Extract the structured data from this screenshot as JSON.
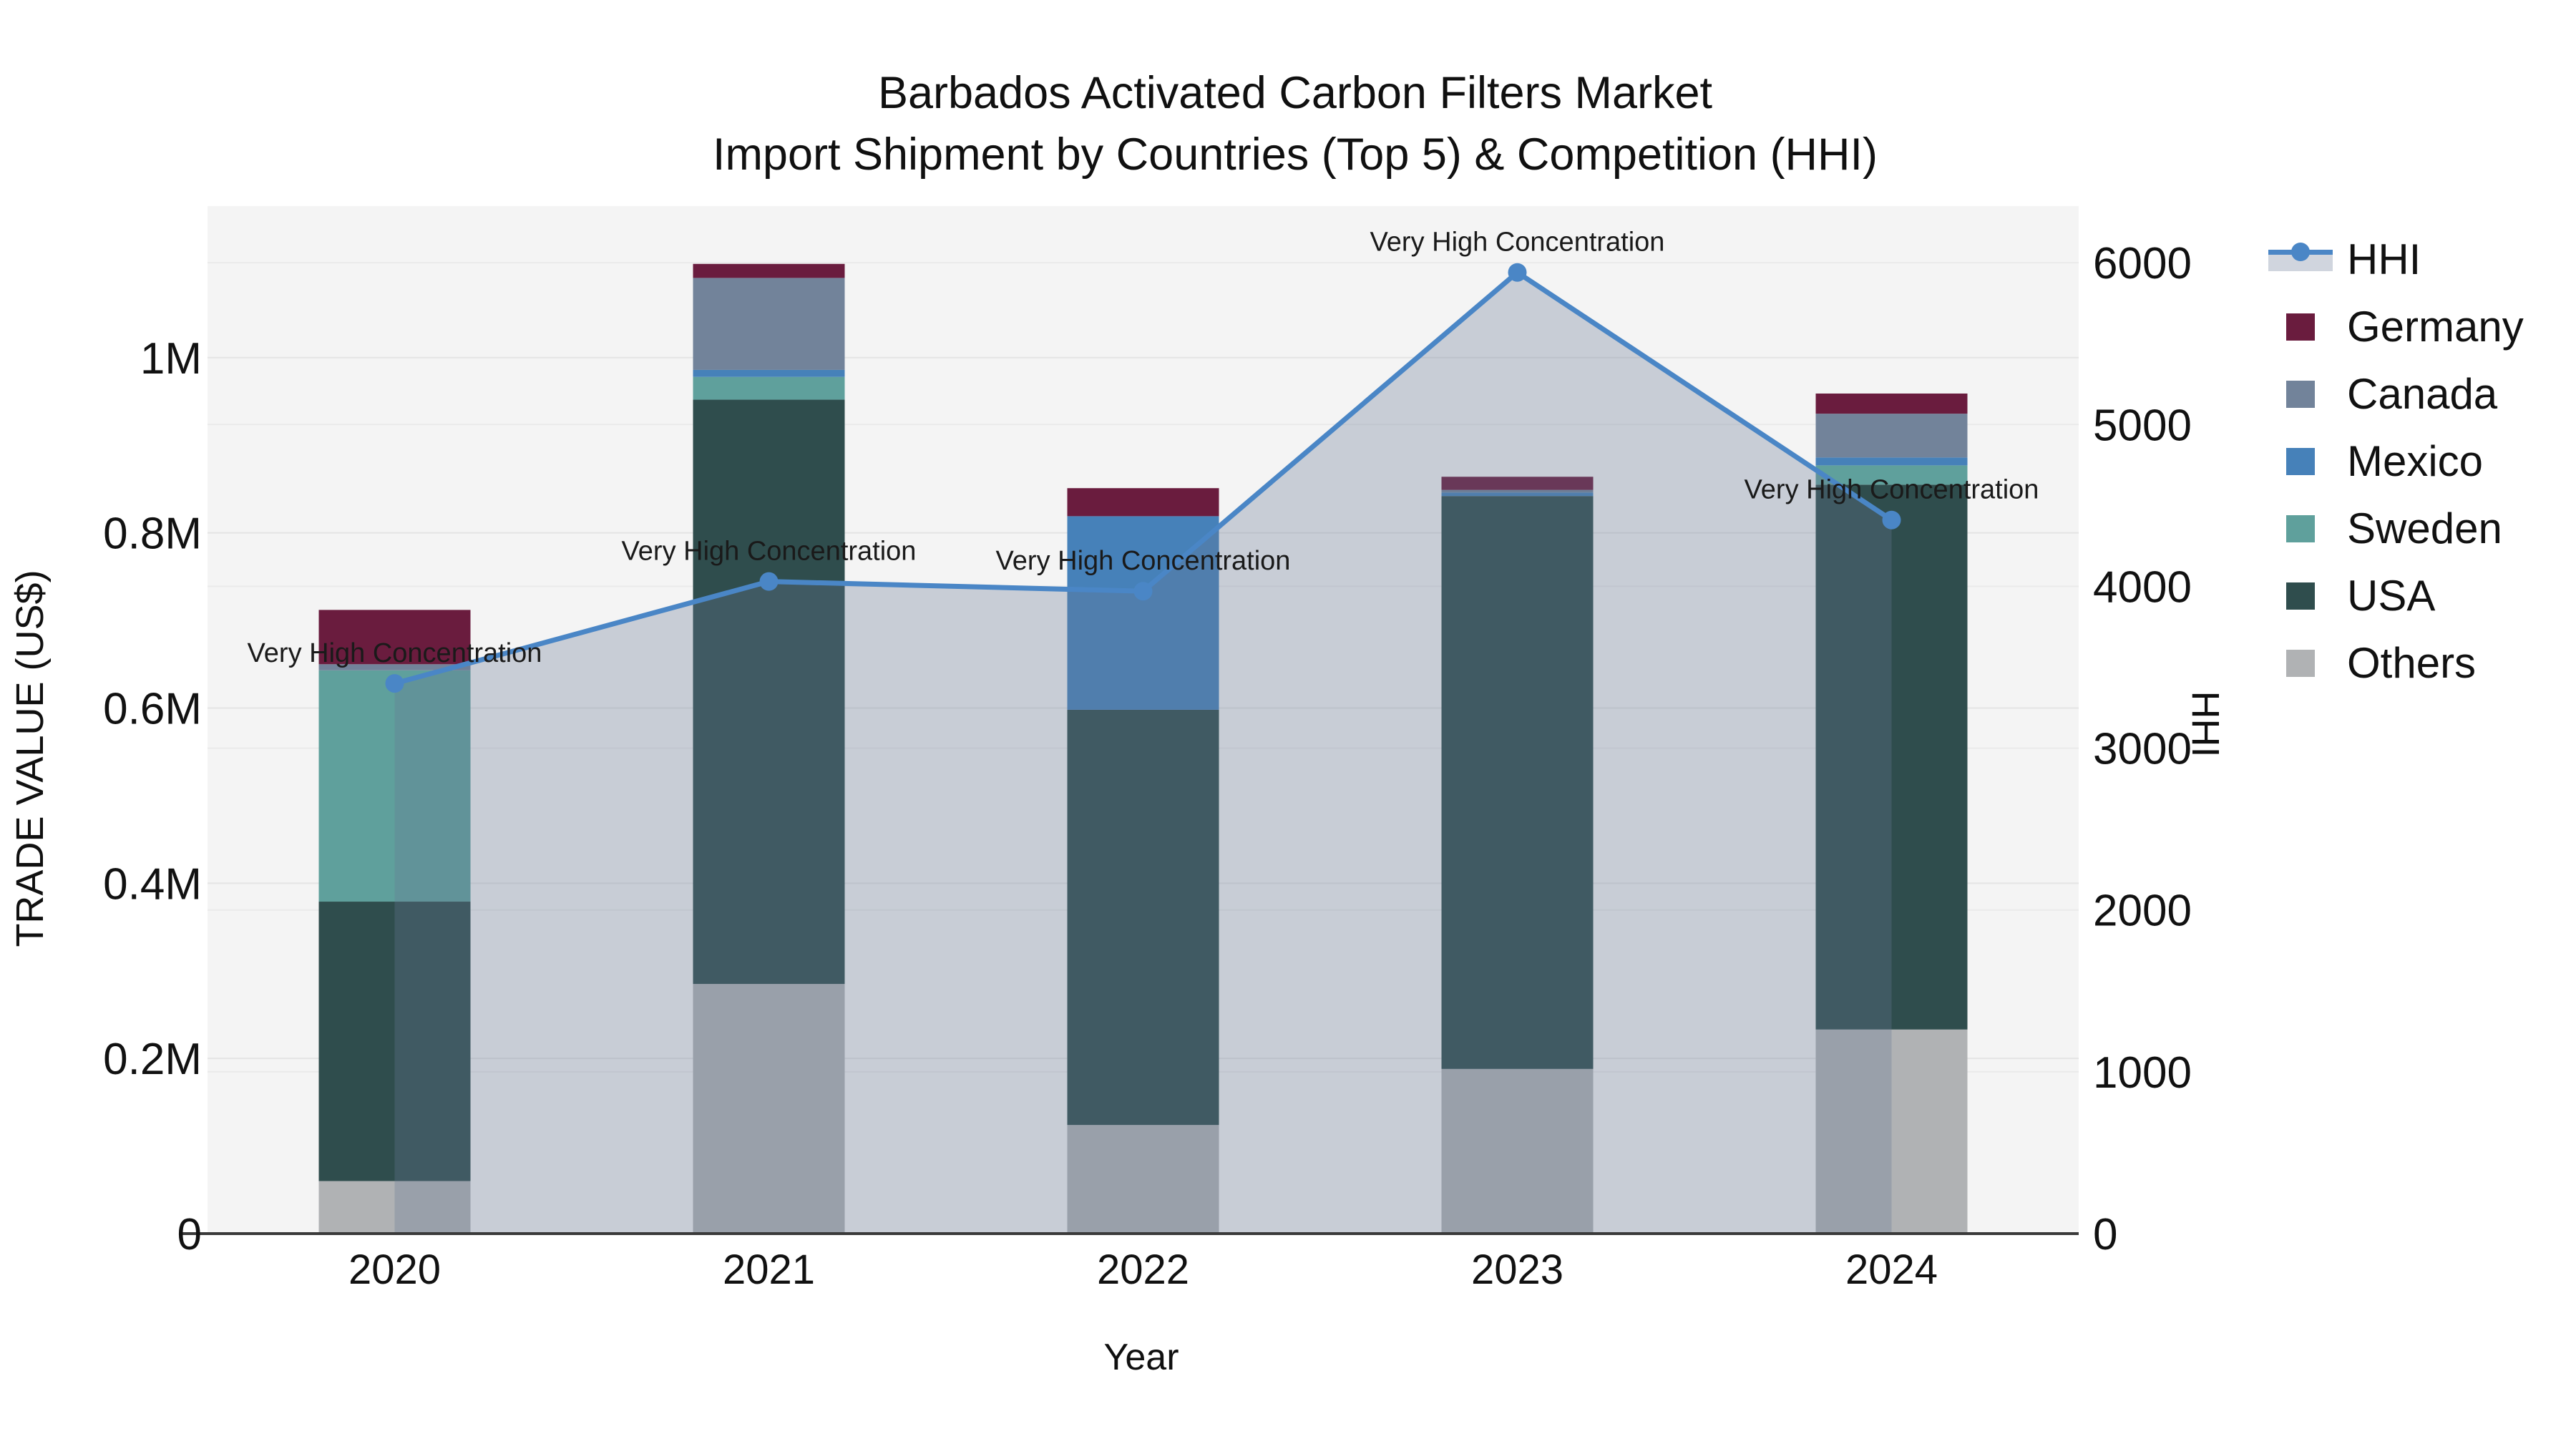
{
  "title": {
    "line1": "Barbados Activated Carbon Filters Market",
    "line2": "Import Shipment by Countries (Top 5) & Competition (HHI)"
  },
  "axes": {
    "x": {
      "title": "Year"
    },
    "y_left": {
      "title": "TRADE VALUE (US$)"
    },
    "y_right": {
      "title": "HHI"
    }
  },
  "colors": {
    "figure_bg": "#ffffff",
    "plot_bg": "#f4f4f4",
    "grid_left": "#e4e4e4",
    "grid_right": "#eaeaea",
    "axis_line": "#3a3a3a",
    "hhi_line": "#4a86c6",
    "hhi_area": "#667693",
    "germany": "#6a1c3e",
    "canada": "#72839a",
    "mexico": "#4681b9",
    "sweden": "#5fa09c",
    "usa": "#2f4d4d",
    "others": "#b0b2b4",
    "text": "#111111",
    "annotation_text": "#1a1a1a"
  },
  "chart_data": {
    "type": "bar",
    "subtype": "stacked-bar-with-line-overlay",
    "categories": [
      "2020",
      "2021",
      "2022",
      "2023",
      "2024"
    ],
    "bar_value_unit": "US$",
    "series": [
      {
        "name": "Others",
        "color": "#b0b2b4",
        "values": [
          60000,
          285000,
          124000,
          188000,
          233000
        ]
      },
      {
        "name": "USA",
        "color": "#2f4d4d",
        "values": [
          319000,
          667000,
          474000,
          654000,
          622000
        ]
      },
      {
        "name": "Sweden",
        "color": "#5fa09c",
        "values": [
          264000,
          26000,
          0,
          0,
          22000
        ]
      },
      {
        "name": "Mexico",
        "color": "#4681b9",
        "values": [
          0,
          8000,
          221000,
          4000,
          9000
        ]
      },
      {
        "name": "Canada",
        "color": "#72839a",
        "values": [
          7000,
          105000,
          0,
          3000,
          50000
        ]
      },
      {
        "name": "Germany",
        "color": "#6a1c3e",
        "values": [
          62000,
          16000,
          32000,
          15000,
          23000
        ]
      }
    ],
    "stack_order_note": "series listed bottom-to-top",
    "totals": [
      712000,
      1107000,
      851000,
      864000,
      959000
    ],
    "line_series": {
      "name": "HHI",
      "color": "#4a86c6",
      "area_color": "#667693",
      "area_opacity": 0.31,
      "values": [
        3400,
        4030,
        3970,
        5940,
        4410
      ]
    },
    "annotations": [
      {
        "category": "2020",
        "text": "Very High Concentration"
      },
      {
        "category": "2021",
        "text": "Very High Concentration"
      },
      {
        "category": "2022",
        "text": "Very High Concentration"
      },
      {
        "category": "2023",
        "text": "Very High Concentration"
      },
      {
        "category": "2024",
        "text": "Very High Concentration"
      }
    ],
    "title": "Barbados Activated Carbon Filters Market Import Shipment by Countries (Top 5) & Competition (HHI)",
    "xlabel": "Year",
    "ylabel_left": "TRADE VALUE (US$)",
    "ylabel_right": "HHI",
    "y_left_ticks": [
      {
        "v": 0,
        "label": "0"
      },
      {
        "v": 200000,
        "label": "0.2M"
      },
      {
        "v": 400000,
        "label": "0.4M"
      },
      {
        "v": 600000,
        "label": "0.6M"
      },
      {
        "v": 800000,
        "label": "0.8M"
      },
      {
        "v": 1000000,
        "label": "1M"
      }
    ],
    "y_right_ticks": [
      {
        "v": 0,
        "label": "0"
      },
      {
        "v": 1000,
        "label": "1000"
      },
      {
        "v": 2000,
        "label": "2000"
      },
      {
        "v": 3000,
        "label": "3000"
      },
      {
        "v": 4000,
        "label": "4000"
      },
      {
        "v": 5000,
        "label": "5000"
      },
      {
        "v": 6000,
        "label": "6000"
      }
    ],
    "y_left_range": [
      0,
      1173000
    ],
    "y_right_range": [
      0,
      6350
    ],
    "grid": true,
    "legend_position": "right",
    "legend": [
      "HHI",
      "Germany",
      "Canada",
      "Mexico",
      "Sweden",
      "USA",
      "Others"
    ]
  }
}
